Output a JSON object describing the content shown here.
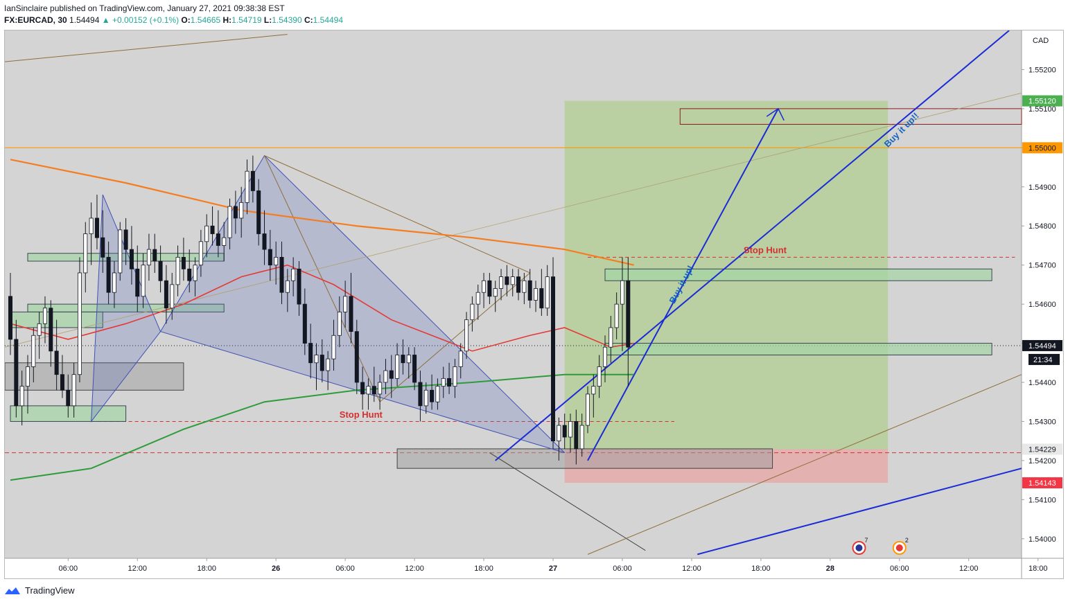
{
  "header": {
    "published_line": "IanSinclaire published on TradingView.com, January 27, 2021 09:38:38 EST",
    "symbol": "FX:EURCAD, 30",
    "last": "1.54494",
    "change_arrow": "▲",
    "change": "+0.00152 (+0.1%)",
    "o_label": "O:",
    "o": "1.54665",
    "h_label": "H:",
    "h": "1.54719",
    "l_label": "L:",
    "l": "1.54390",
    "c_label": "C:",
    "c": "1.54494"
  },
  "footer": {
    "brand": "TradingView"
  },
  "chart_data": {
    "type": "candlestick",
    "symbol": "FX:EURCAD",
    "interval": "30",
    "currency_label": "CAD",
    "ylim": [
      1.5395,
      1.553
    ],
    "y_ticks": [
      "1.55200",
      "1.55100",
      "1.55000",
      "1.54900",
      "1.54800",
      "1.54700",
      "1.54600",
      "1.54500",
      "1.54400",
      "1.54300",
      "1.54200",
      "1.54100",
      "1.54000"
    ],
    "x_ticks": [
      "06:00",
      "12:00",
      "18:00",
      "26",
      "06:00",
      "12:00",
      "18:00",
      "27",
      "06:00",
      "12:00",
      "18:00",
      "28",
      "06:00",
      "12:00",
      "18:00"
    ],
    "x_tick_index": [
      10,
      22,
      34,
      46,
      58,
      70,
      82,
      94,
      106,
      118,
      130,
      142,
      154,
      166,
      178
    ],
    "price_labels": [
      {
        "value": 1.5512,
        "text": "1.55120",
        "bg": "#4caf50",
        "color": "#ffffff"
      },
      {
        "value": 1.55,
        "text": "1.55000",
        "bg": "#ff9800",
        "color": "#131722"
      },
      {
        "value": 1.54494,
        "text": "1.54494",
        "bg": "#131722",
        "color": "#ffffff"
      },
      {
        "value": 1.54229,
        "text": "1.54229",
        "bg": "#e8e8e8",
        "color": "#131722"
      },
      {
        "value": 1.54143,
        "text": "1.54143",
        "bg": "#f23645",
        "color": "#ffffff"
      }
    ],
    "countdown": "21:34",
    "last_price": 1.54494,
    "candles": [
      {
        "o": 1.5462,
        "h": 1.5468,
        "l": 1.5447,
        "c": 1.5451
      },
      {
        "o": 1.5451,
        "h": 1.5456,
        "l": 1.5431,
        "c": 1.5434
      },
      {
        "o": 1.5434,
        "h": 1.5443,
        "l": 1.5429,
        "c": 1.5439
      },
      {
        "o": 1.5439,
        "h": 1.5447,
        "l": 1.5432,
        "c": 1.5444
      },
      {
        "o": 1.5444,
        "h": 1.5454,
        "l": 1.544,
        "c": 1.5452
      },
      {
        "o": 1.5452,
        "h": 1.5458,
        "l": 1.5446,
        "c": 1.5455
      },
      {
        "o": 1.5455,
        "h": 1.5462,
        "l": 1.545,
        "c": 1.5459
      },
      {
        "o": 1.5459,
        "h": 1.5461,
        "l": 1.5444,
        "c": 1.5448
      },
      {
        "o": 1.5448,
        "h": 1.5456,
        "l": 1.5438,
        "c": 1.5442
      },
      {
        "o": 1.5442,
        "h": 1.5447,
        "l": 1.5436,
        "c": 1.5438
      },
      {
        "o": 1.5438,
        "h": 1.5442,
        "l": 1.5431,
        "c": 1.5434
      },
      {
        "o": 1.5434,
        "h": 1.5445,
        "l": 1.5431,
        "c": 1.5442
      },
      {
        "o": 1.5442,
        "h": 1.5472,
        "l": 1.544,
        "c": 1.5468
      },
      {
        "o": 1.5468,
        "h": 1.5481,
        "l": 1.5463,
        "c": 1.5478
      },
      {
        "o": 1.5478,
        "h": 1.5486,
        "l": 1.547,
        "c": 1.5482
      },
      {
        "o": 1.5482,
        "h": 1.5488,
        "l": 1.5474,
        "c": 1.5477
      },
      {
        "o": 1.5477,
        "h": 1.5484,
        "l": 1.5468,
        "c": 1.5472
      },
      {
        "o": 1.5472,
        "h": 1.5476,
        "l": 1.546,
        "c": 1.5463
      },
      {
        "o": 1.5463,
        "h": 1.5471,
        "l": 1.5459,
        "c": 1.5468
      },
      {
        "o": 1.5468,
        "h": 1.5481,
        "l": 1.5466,
        "c": 1.5479
      },
      {
        "o": 1.5479,
        "h": 1.5482,
        "l": 1.547,
        "c": 1.5474
      },
      {
        "o": 1.5474,
        "h": 1.548,
        "l": 1.5465,
        "c": 1.5469
      },
      {
        "o": 1.5469,
        "h": 1.5475,
        "l": 1.5458,
        "c": 1.5462
      },
      {
        "o": 1.5462,
        "h": 1.5473,
        "l": 1.5459,
        "c": 1.547
      },
      {
        "o": 1.547,
        "h": 1.5478,
        "l": 1.5466,
        "c": 1.5474
      },
      {
        "o": 1.5474,
        "h": 1.5478,
        "l": 1.5468,
        "c": 1.5471
      },
      {
        "o": 1.5471,
        "h": 1.5475,
        "l": 1.5463,
        "c": 1.5466
      },
      {
        "o": 1.5466,
        "h": 1.547,
        "l": 1.5455,
        "c": 1.5459
      },
      {
        "o": 1.5459,
        "h": 1.5468,
        "l": 1.5456,
        "c": 1.5465
      },
      {
        "o": 1.5465,
        "h": 1.5475,
        "l": 1.5462,
        "c": 1.5472
      },
      {
        "o": 1.5472,
        "h": 1.5477,
        "l": 1.5466,
        "c": 1.5469
      },
      {
        "o": 1.5469,
        "h": 1.5474,
        "l": 1.5463,
        "c": 1.5466
      },
      {
        "o": 1.5466,
        "h": 1.5472,
        "l": 1.5462,
        "c": 1.547
      },
      {
        "o": 1.547,
        "h": 1.5479,
        "l": 1.5467,
        "c": 1.5476
      },
      {
        "o": 1.5476,
        "h": 1.5483,
        "l": 1.5472,
        "c": 1.548
      },
      {
        "o": 1.548,
        "h": 1.5485,
        "l": 1.5475,
        "c": 1.5478
      },
      {
        "o": 1.5478,
        "h": 1.5484,
        "l": 1.5472,
        "c": 1.5475
      },
      {
        "o": 1.5475,
        "h": 1.5481,
        "l": 1.5471,
        "c": 1.5477
      },
      {
        "o": 1.5477,
        "h": 1.5487,
        "l": 1.5474,
        "c": 1.5485
      },
      {
        "o": 1.5485,
        "h": 1.5489,
        "l": 1.5478,
        "c": 1.5482
      },
      {
        "o": 1.5482,
        "h": 1.549,
        "l": 1.5477,
        "c": 1.5486
      },
      {
        "o": 1.5486,
        "h": 1.5497,
        "l": 1.5483,
        "c": 1.5494
      },
      {
        "o": 1.5494,
        "h": 1.5498,
        "l": 1.5486,
        "c": 1.5489
      },
      {
        "o": 1.5489,
        "h": 1.5492,
        "l": 1.5475,
        "c": 1.5478
      },
      {
        "o": 1.5478,
        "h": 1.5484,
        "l": 1.547,
        "c": 1.5474
      },
      {
        "o": 1.5474,
        "h": 1.5479,
        "l": 1.5466,
        "c": 1.547
      },
      {
        "o": 1.547,
        "h": 1.5476,
        "l": 1.5465,
        "c": 1.5472
      },
      {
        "o": 1.5472,
        "h": 1.5476,
        "l": 1.546,
        "c": 1.5463
      },
      {
        "o": 1.5463,
        "h": 1.5469,
        "l": 1.5458,
        "c": 1.5466
      },
      {
        "o": 1.5466,
        "h": 1.5472,
        "l": 1.5462,
        "c": 1.5469
      },
      {
        "o": 1.5469,
        "h": 1.5471,
        "l": 1.5457,
        "c": 1.546
      },
      {
        "o": 1.546,
        "h": 1.5464,
        "l": 1.5447,
        "c": 1.545
      },
      {
        "o": 1.545,
        "h": 1.5455,
        "l": 1.5441,
        "c": 1.5445
      },
      {
        "o": 1.5445,
        "h": 1.545,
        "l": 1.5438,
        "c": 1.5447
      },
      {
        "o": 1.5447,
        "h": 1.5451,
        "l": 1.544,
        "c": 1.5443
      },
      {
        "o": 1.5443,
        "h": 1.5448,
        "l": 1.5438,
        "c": 1.5446
      },
      {
        "o": 1.5446,
        "h": 1.5456,
        "l": 1.5443,
        "c": 1.5452
      },
      {
        "o": 1.5452,
        "h": 1.5462,
        "l": 1.5449,
        "c": 1.5458
      },
      {
        "o": 1.5458,
        "h": 1.5466,
        "l": 1.5454,
        "c": 1.5462
      },
      {
        "o": 1.5462,
        "h": 1.5468,
        "l": 1.545,
        "c": 1.5453
      },
      {
        "o": 1.5453,
        "h": 1.5456,
        "l": 1.5437,
        "c": 1.544
      },
      {
        "o": 1.544,
        "h": 1.5444,
        "l": 1.5433,
        "c": 1.5437
      },
      {
        "o": 1.5437,
        "h": 1.5441,
        "l": 1.5433,
        "c": 1.5439
      },
      {
        "o": 1.5439,
        "h": 1.5444,
        "l": 1.5435,
        "c": 1.5437
      },
      {
        "o": 1.5437,
        "h": 1.5442,
        "l": 1.5433,
        "c": 1.544
      },
      {
        "o": 1.544,
        "h": 1.5446,
        "l": 1.5437,
        "c": 1.5443
      },
      {
        "o": 1.5443,
        "h": 1.5447,
        "l": 1.5436,
        "c": 1.5441
      },
      {
        "o": 1.5441,
        "h": 1.545,
        "l": 1.5439,
        "c": 1.5447
      },
      {
        "o": 1.5447,
        "h": 1.5451,
        "l": 1.5442,
        "c": 1.5445
      },
      {
        "o": 1.5445,
        "h": 1.5449,
        "l": 1.5441,
        "c": 1.5447
      },
      {
        "o": 1.5447,
        "h": 1.5449,
        "l": 1.5438,
        "c": 1.544
      },
      {
        "o": 1.544,
        "h": 1.5443,
        "l": 1.543,
        "c": 1.5434
      },
      {
        "o": 1.5434,
        "h": 1.544,
        "l": 1.5432,
        "c": 1.5438
      },
      {
        "o": 1.5438,
        "h": 1.5442,
        "l": 1.5433,
        "c": 1.5435
      },
      {
        "o": 1.5435,
        "h": 1.5441,
        "l": 1.5433,
        "c": 1.5439
      },
      {
        "o": 1.5439,
        "h": 1.5444,
        "l": 1.5436,
        "c": 1.5441
      },
      {
        "o": 1.5441,
        "h": 1.5445,
        "l": 1.5437,
        "c": 1.5439
      },
      {
        "o": 1.5439,
        "h": 1.5446,
        "l": 1.5436,
        "c": 1.5444
      },
      {
        "o": 1.5444,
        "h": 1.545,
        "l": 1.5441,
        "c": 1.5448
      },
      {
        "o": 1.5448,
        "h": 1.5458,
        "l": 1.5446,
        "c": 1.5456
      },
      {
        "o": 1.5456,
        "h": 1.5462,
        "l": 1.5453,
        "c": 1.546
      },
      {
        "o": 1.546,
        "h": 1.5465,
        "l": 1.5456,
        "c": 1.5463
      },
      {
        "o": 1.5463,
        "h": 1.5468,
        "l": 1.5459,
        "c": 1.5466
      },
      {
        "o": 1.5466,
        "h": 1.5468,
        "l": 1.546,
        "c": 1.5462
      },
      {
        "o": 1.5462,
        "h": 1.5466,
        "l": 1.5458,
        "c": 1.5464
      },
      {
        "o": 1.5464,
        "h": 1.5469,
        "l": 1.5461,
        "c": 1.5467
      },
      {
        "o": 1.5467,
        "h": 1.547,
        "l": 1.5462,
        "c": 1.5465
      },
      {
        "o": 1.5465,
        "h": 1.5469,
        "l": 1.5462,
        "c": 1.5467
      },
      {
        "o": 1.5467,
        "h": 1.5469,
        "l": 1.5461,
        "c": 1.5463
      },
      {
        "o": 1.5463,
        "h": 1.5468,
        "l": 1.546,
        "c": 1.5466
      },
      {
        "o": 1.5466,
        "h": 1.5469,
        "l": 1.5459,
        "c": 1.5461
      },
      {
        "o": 1.5461,
        "h": 1.5466,
        "l": 1.5458,
        "c": 1.5464
      },
      {
        "o": 1.5464,
        "h": 1.5469,
        "l": 1.5457,
        "c": 1.5459
      },
      {
        "o": 1.5459,
        "h": 1.547,
        "l": 1.5457,
        "c": 1.5467
      },
      {
        "o": 1.5467,
        "h": 1.5472,
        "l": 1.5423,
        "c": 1.5425
      },
      {
        "o": 1.5425,
        "h": 1.5431,
        "l": 1.542,
        "c": 1.5429
      },
      {
        "o": 1.5429,
        "h": 1.5432,
        "l": 1.5423,
        "c": 1.5426
      },
      {
        "o": 1.5426,
        "h": 1.5432,
        "l": 1.5422,
        "c": 1.543
      },
      {
        "o": 1.543,
        "h": 1.5433,
        "l": 1.5419,
        "c": 1.5423
      },
      {
        "o": 1.5423,
        "h": 1.5432,
        "l": 1.5421,
        "c": 1.5429
      },
      {
        "o": 1.5429,
        "h": 1.5439,
        "l": 1.5427,
        "c": 1.5437
      },
      {
        "o": 1.5437,
        "h": 1.5442,
        "l": 1.5431,
        "c": 1.5439
      },
      {
        "o": 1.5439,
        "h": 1.5447,
        "l": 1.5436,
        "c": 1.5444
      },
      {
        "o": 1.5444,
        "h": 1.5452,
        "l": 1.544,
        "c": 1.5449
      },
      {
        "o": 1.5449,
        "h": 1.5457,
        "l": 1.5445,
        "c": 1.5454
      },
      {
        "o": 1.5454,
        "h": 1.5463,
        "l": 1.5451,
        "c": 1.546
      },
      {
        "o": 1.546,
        "h": 1.5472,
        "l": 1.5448,
        "c": 1.5466
      },
      {
        "o": 1.5466,
        "h": 1.5472,
        "l": 1.5439,
        "c": 1.5449
      }
    ],
    "overlays": {
      "zones_gray": [
        [
          1.5438,
          1.5445
        ],
        [
          1.5418,
          1.5423
        ]
      ],
      "zones_green": [
        [
          1.5471,
          1.5473
        ],
        [
          1.5458,
          1.546
        ],
        [
          1.5454,
          1.5458
        ],
        [
          1.543,
          1.5434
        ],
        [
          1.5466,
          1.5469
        ],
        [
          1.5447,
          1.545
        ]
      ],
      "target_zone": [
        1.5506,
        1.551
      ],
      "stop_hunt_levels": [
        1.5472,
        1.543,
        1.5422
      ]
    },
    "annotations": [
      "Stop Hunt",
      "Stop Hunt",
      "Buy it up!",
      "Buy it up!!"
    ],
    "events": [
      {
        "icon": "eu-flag-icon",
        "count": "7"
      },
      {
        "icon": "ca-flag-icon",
        "count": "2"
      }
    ],
    "colors": {
      "up": "#ffffff",
      "down": "#131722",
      "ema_orange": "#f57c1f",
      "ema_red": "#e53935",
      "ema_green": "#2e9b3a",
      "trend_blue": "#1a2bd6",
      "stop_hunt": "#d32f2f",
      "bg": "#d4d4d4"
    }
  }
}
